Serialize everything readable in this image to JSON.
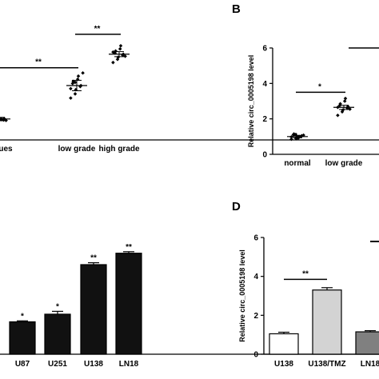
{
  "chart_data": [
    {
      "panel": "",
      "type": "scatter",
      "categories": [
        "issues",
        "low grade",
        "high grade"
      ],
      "ylabel": "",
      "ylim": [
        0,
        6
      ],
      "series": [
        {
          "category": "issues",
          "mean": 1.0,
          "sem": 0.08,
          "points": [
            0.92,
            0.98,
            1.05,
            0.95,
            1.02,
            0.88,
            1.1,
            0.97,
            1.0,
            0.93,
            1.06,
            1.01
          ]
        },
        {
          "category": "low grade",
          "mean": 2.6,
          "sem": 0.25,
          "points": [
            2.0,
            2.2,
            2.4,
            2.55,
            2.6,
            2.7,
            2.8,
            2.9,
            3.05,
            3.2,
            2.45,
            2.75
          ]
        },
        {
          "category": "high grade",
          "mean": 4.1,
          "sem": 0.12,
          "points": [
            3.7,
            3.85,
            3.95,
            4.05,
            4.1,
            4.15,
            4.25,
            4.35,
            4.5,
            4.0,
            4.2
          ]
        }
      ],
      "comparisons": [
        {
          "from": "issues",
          "to": "low grade",
          "label": "**",
          "y": 3.45
        },
        {
          "from": "low grade",
          "to": "high grade",
          "label": "**",
          "y": 5.05
        }
      ]
    },
    {
      "panel": "B",
      "type": "scatter",
      "categories": [
        "normal",
        "low grade"
      ],
      "ylabel": "Relative circ_0005198 level",
      "yticks": [
        0,
        2,
        4,
        6
      ],
      "ylim": [
        0,
        6
      ],
      "series": [
        {
          "category": "normal",
          "mean": 1.0,
          "sem": 0.06,
          "points": [
            0.85,
            0.9,
            0.95,
            1.0,
            1.05,
            1.1,
            1.15,
            0.92,
            1.02,
            1.08,
            0.98,
            1.12,
            0.88
          ]
        },
        {
          "category": "low grade",
          "mean": 2.65,
          "sem": 0.12,
          "points": [
            2.2,
            2.4,
            2.5,
            2.6,
            2.7,
            2.75,
            2.85,
            3.0,
            3.15,
            2.55,
            2.65
          ]
        }
      ],
      "comparisons": [
        {
          "from": "normal",
          "to": "low grade",
          "label": "*",
          "y": 3.5
        }
      ]
    },
    {
      "panel": "",
      "type": "bar",
      "categories": [
        "U87",
        "U251",
        "U138",
        "LN18"
      ],
      "values": [
        1.7,
        2.1,
        4.7,
        5.3
      ],
      "errors": [
        0.05,
        0.15,
        0.1,
        0.08
      ],
      "labels": [
        "*",
        "*",
        "**",
        "**"
      ],
      "ylim": [
        0,
        6
      ]
    },
    {
      "panel": "D",
      "type": "bar",
      "categories": [
        "U138",
        "U138/TMZ",
        "LN18"
      ],
      "values": [
        1.05,
        3.3,
        1.15
      ],
      "errors": [
        0.08,
        0.12,
        0.06
      ],
      "colors": [
        "#ffffff",
        "#d3d3d3",
        "#808080"
      ],
      "ylabel": "Relative circ_0005198 level",
      "yticks": [
        0,
        2,
        4,
        6
      ],
      "ylim": [
        0,
        6
      ],
      "comparisons": [
        {
          "from": "U138",
          "to": "U138/TMZ",
          "label": "**",
          "y": 3.85
        }
      ]
    }
  ]
}
